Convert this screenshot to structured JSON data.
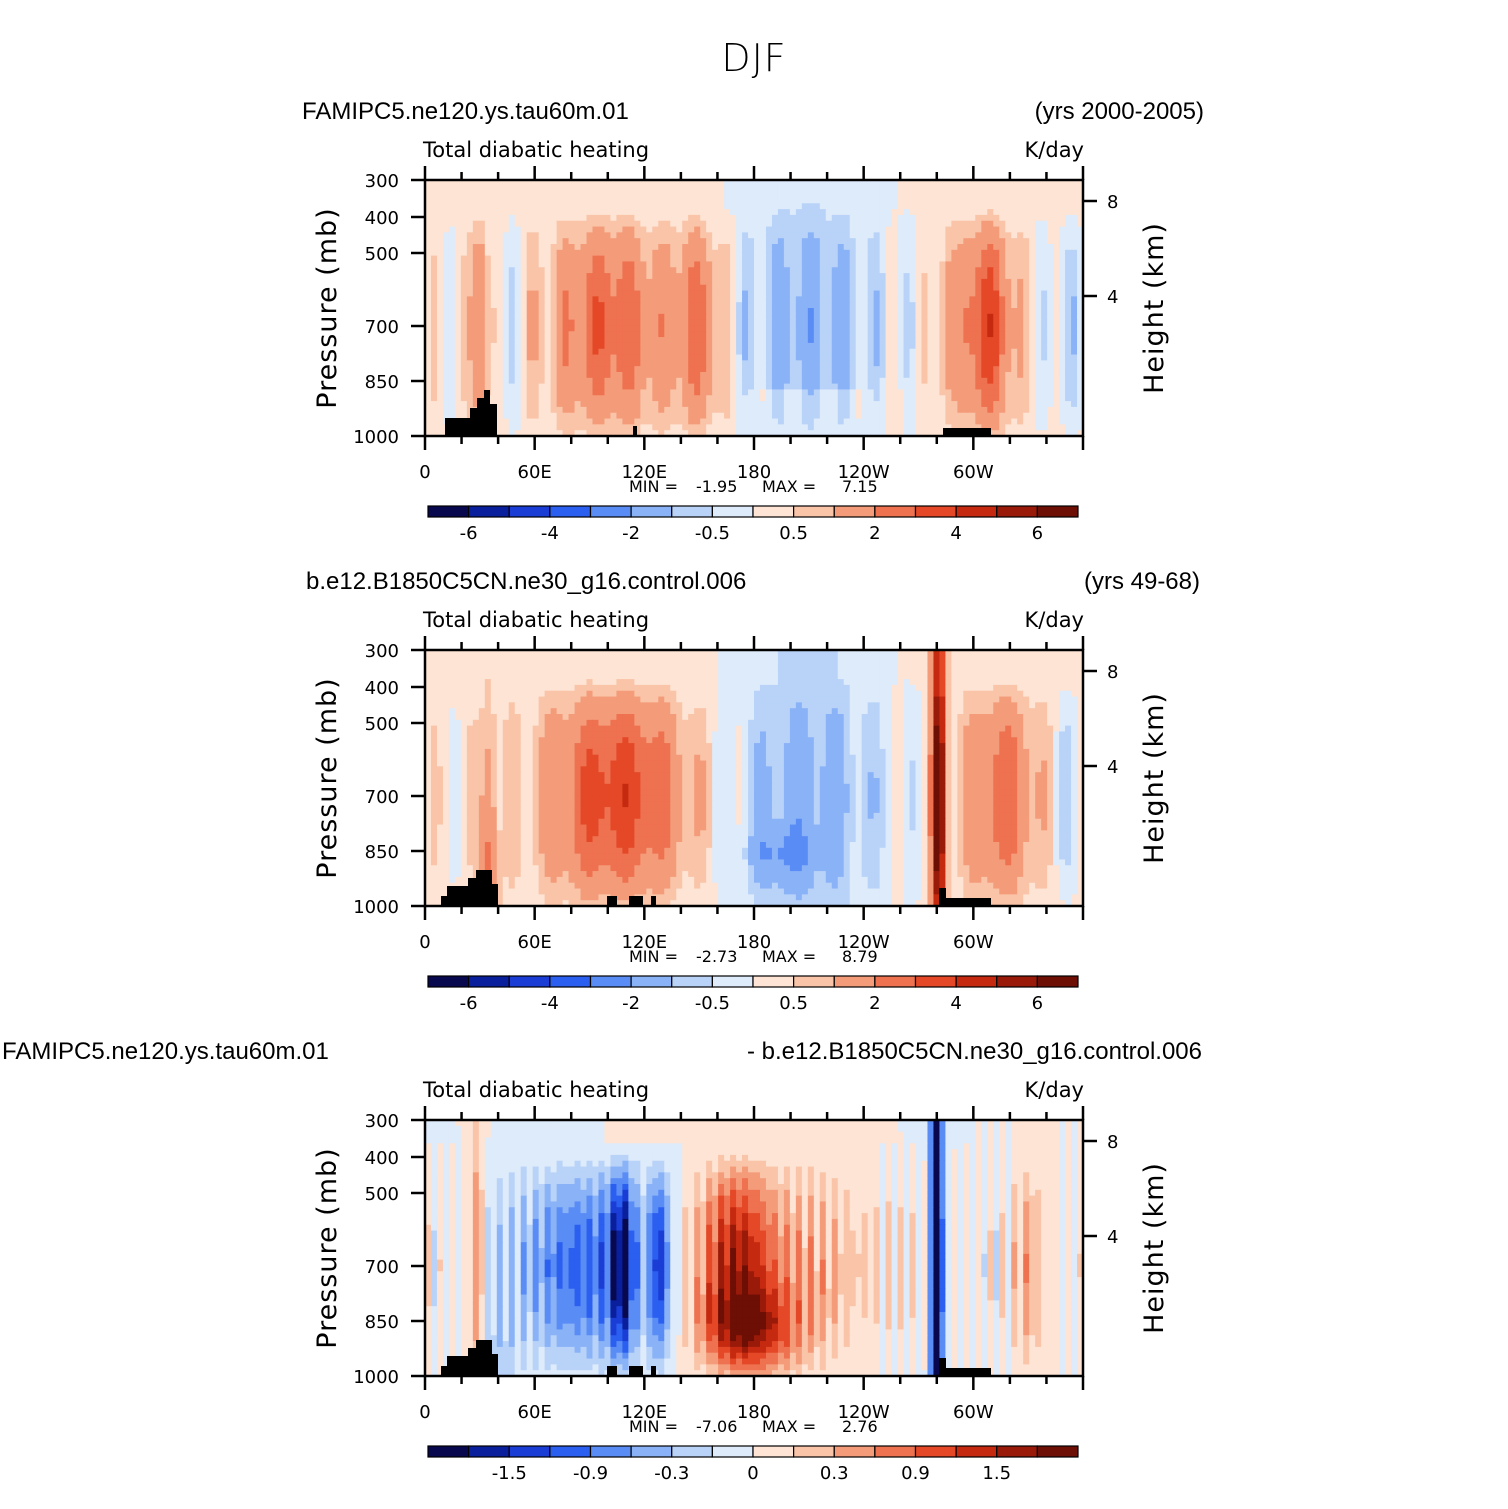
{
  "figure": {
    "title": "DJF"
  },
  "palette": {
    "levels": [
      "#08084f",
      "#0a1f9c",
      "#1a3dd6",
      "#2b5ff0",
      "#5a8cf5",
      "#8ab2f7",
      "#b9d3f8",
      "#deebfa",
      "#fde4d4",
      "#f9c4a8",
      "#f49c7a",
      "#ee7150",
      "#e44826",
      "#c52a10",
      "#9a1a0a",
      "#6d0f05"
    ],
    "terrain": "#000000",
    "frame": "#000000"
  },
  "chart_data": [
    {
      "type": "heatmap",
      "case_left": "FAMIPC5.ne120.ys.tau60m.01",
      "case_right": "(yrs 2000-2005)",
      "subtitle_left": "Total diabatic heating",
      "subtitle_right": "K/day",
      "ylabel": "Pressure (mb)",
      "ylabel_right": "Height (km)",
      "x_ticks": [
        "0",
        "60E",
        "120E",
        "180",
        "120W",
        "60W"
      ],
      "y_ticks": [
        "300",
        "400",
        "500",
        "700",
        "850",
        "1000"
      ],
      "y_right_ticks": [
        "8",
        "4"
      ],
      "min_label": "MIN =",
      "min_value": "-1.95",
      "max_label": "MAX =",
      "max_value": "7.15",
      "colorbar_labels": [
        "-6",
        "-4",
        "-2",
        "-0.5",
        "0.5",
        "2",
        "4",
        "6"
      ],
      "xlim": [
        0,
        360
      ],
      "ylim": [
        1000,
        300
      ]
    },
    {
      "type": "heatmap",
      "case_left": "b.e12.B1850C5CN.ne30_g16.control.006",
      "case_right": "(yrs 49-68)",
      "subtitle_left": "Total diabatic heating",
      "subtitle_right": "K/day",
      "ylabel": "Pressure (mb)",
      "ylabel_right": "Height (km)",
      "x_ticks": [
        "0",
        "60E",
        "120E",
        "180",
        "120W",
        "60W"
      ],
      "y_ticks": [
        "300",
        "400",
        "500",
        "700",
        "850",
        "1000"
      ],
      "y_right_ticks": [
        "8",
        "4"
      ],
      "min_label": "MIN =",
      "min_value": "-2.73",
      "max_label": "MAX =",
      "max_value": "8.79",
      "colorbar_labels": [
        "-6",
        "-4",
        "-2",
        "-0.5",
        "0.5",
        "2",
        "4",
        "6"
      ],
      "xlim": [
        0,
        360
      ],
      "ylim": [
        1000,
        300
      ]
    },
    {
      "type": "heatmap",
      "case_left": "FAMIPC5.ne120.ys.tau60m.01",
      "case_right": "- b.e12.B1850C5CN.ne30_g16.control.006",
      "subtitle_left": "Total diabatic heating",
      "subtitle_right": "K/day",
      "ylabel": "Pressure (mb)",
      "ylabel_right": "Height (km)",
      "x_ticks": [
        "0",
        "60E",
        "120E",
        "180",
        "120W",
        "60W"
      ],
      "y_ticks": [
        "300",
        "400",
        "500",
        "700",
        "850",
        "1000"
      ],
      "y_right_ticks": [
        "8",
        "4"
      ],
      "min_label": "MIN =",
      "min_value": "-7.06",
      "max_label": "MAX =",
      "max_value": "2.76",
      "colorbar_labels": [
        "-1.5",
        "-0.9",
        "-0.3",
        "0",
        "0.3",
        "0.9",
        "1.5"
      ],
      "xlim": [
        0,
        360
      ],
      "ylim": [
        1000,
        300
      ]
    }
  ]
}
